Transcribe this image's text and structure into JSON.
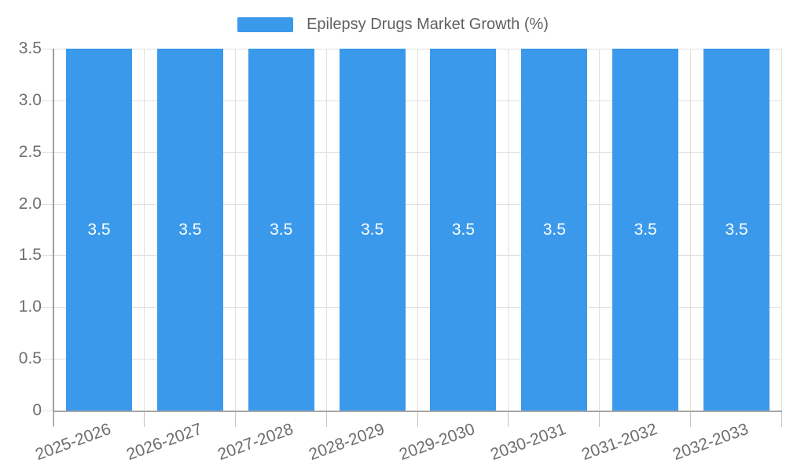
{
  "legend": {
    "label": "Epilepsy Drugs Market Growth (%)"
  },
  "colors": {
    "bar": "#3b99ec",
    "bar_label": "#ffffff",
    "axis_line": "#9e9e9e",
    "gridline": "#e0e0e0",
    "tick_label": "#6e6e6e",
    "legend_text": "#616161",
    "background": "#ffffff"
  },
  "chart_data": {
    "type": "bar",
    "title": "Epilepsy Drugs Market Growth (%)",
    "series_name": "Epilepsy Drugs Market Growth (%)",
    "categories": [
      "2025-2026",
      "2026-2027",
      "2027-2028",
      "2028-2029",
      "2029-2030",
      "2030-2031",
      "2031-2032",
      "2032-2033"
    ],
    "values": [
      3.5,
      3.5,
      3.5,
      3.5,
      3.5,
      3.5,
      3.5,
      3.5
    ],
    "bar_labels": [
      "3.5",
      "3.5",
      "3.5",
      "3.5",
      "3.5",
      "3.5",
      "3.5",
      "3.5"
    ],
    "xlabel": "",
    "ylabel": "",
    "ylim": [
      0,
      3.5
    ],
    "yticks": [
      0,
      0.5,
      1.0,
      1.5,
      2.0,
      2.5,
      3.0,
      3.5
    ],
    "ytick_labels": [
      "0",
      "0.5",
      "1.0",
      "1.5",
      "2.0",
      "2.5",
      "3.0",
      "3.5"
    ],
    "xtick_label_rotation_deg": -20,
    "grid": true,
    "legend_position": "top-center",
    "value_labels": "inside-center",
    "bar_color": "#3b99ec"
  }
}
